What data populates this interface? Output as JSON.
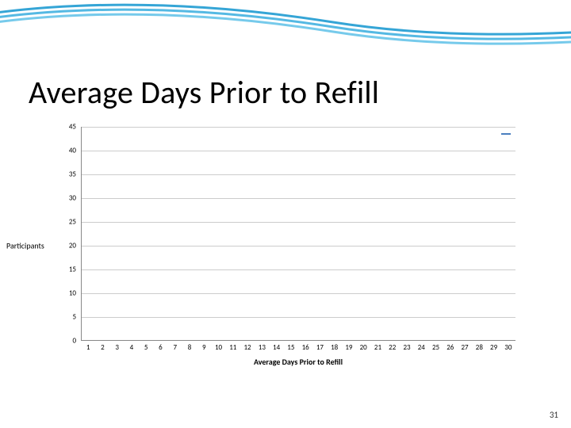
{
  "slide": {
    "title": "Average Days Prior to Refill",
    "page_number": "31",
    "background_color": "#ffffff",
    "swoosh_colors": [
      "#1f9bd1",
      "#2aa7dc",
      "#3cb3e2"
    ]
  },
  "chart": {
    "type": "bar",
    "title": "",
    "ylabel": "Participants",
    "xlabel": "Average Days Prior to Refill",
    "ylim": [
      0,
      45
    ],
    "ytick_step": 5,
    "yticks": [
      0,
      5,
      10,
      15,
      20,
      25,
      30,
      35,
      40,
      45
    ],
    "xticks": [
      "1",
      "2",
      "3",
      "4",
      "5",
      "6",
      "7",
      "8",
      "9",
      "10",
      "11",
      "12",
      "13",
      "14",
      "15",
      "16",
      "17",
      "18",
      "19",
      "20",
      "21",
      "22",
      "23",
      "24",
      "25",
      "26",
      "27",
      "28",
      "29",
      "30"
    ],
    "values": [],
    "series_color": "#4a7fbf",
    "grid_color": "#cccccc",
    "axis_color": "#888888",
    "tick_fontsize": 9,
    "label_fontsize": 10,
    "legend_present": true
  }
}
